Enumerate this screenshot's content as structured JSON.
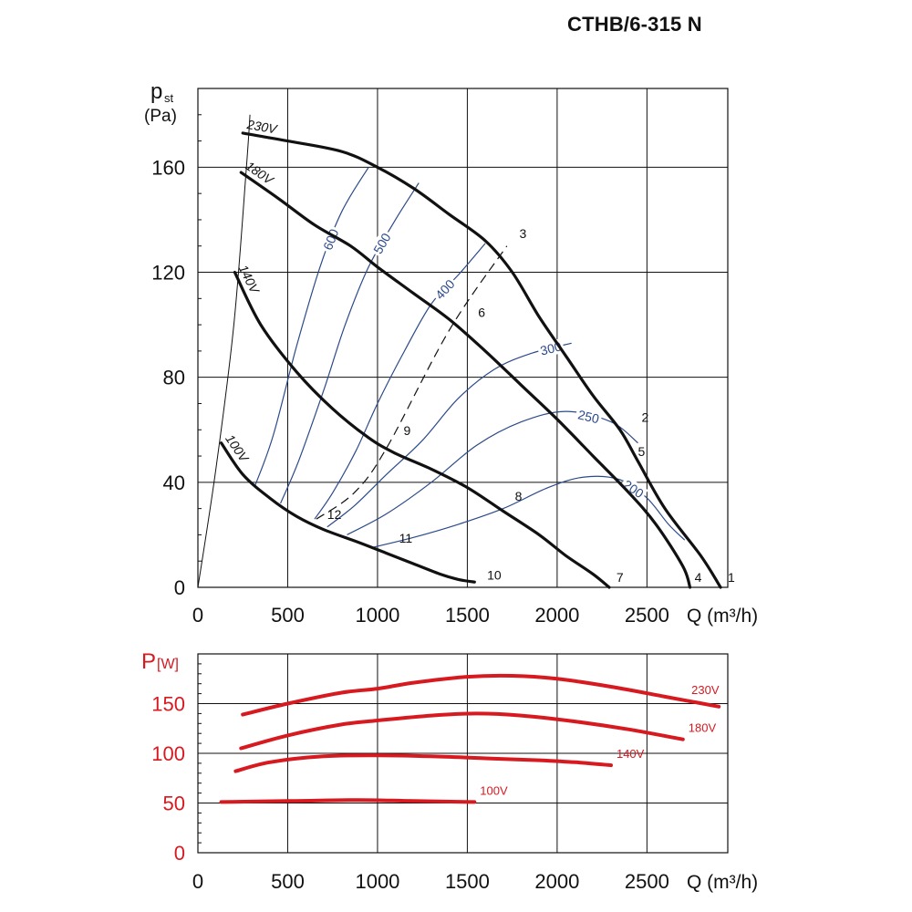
{
  "title": "CTHB/6-315 N",
  "colors": {
    "axis": "#111111",
    "pressure": "#111111",
    "power": "#d71920",
    "speed": "#2b4a8a"
  },
  "chart_data": [
    {
      "type": "line",
      "name": "pressure",
      "xlabel": "Q (m³/h)",
      "ylabel_main": "p",
      "ylabel_sub": "st",
      "ylabel_unit": "(Pa)",
      "xlim": [
        0,
        2950
      ],
      "ylim": [
        0,
        190
      ],
      "xticks": [
        0,
        500,
        1000,
        1500,
        2000,
        2500
      ],
      "yticks": [
        0,
        40,
        80,
        120,
        160
      ],
      "grid": true,
      "series": [
        {
          "name": "230V",
          "points": [
            [
              250,
              173
            ],
            [
              500,
              170
            ],
            [
              800,
              166
            ],
            [
              1000,
              160
            ],
            [
              1200,
              152
            ],
            [
              1400,
              142
            ],
            [
              1600,
              132
            ],
            [
              1750,
              120
            ],
            [
              1900,
              103
            ],
            [
              2050,
              88
            ],
            [
              2200,
              73
            ],
            [
              2350,
              60
            ],
            [
              2450,
              48
            ],
            [
              2600,
              30
            ],
            [
              2800,
              12
            ],
            [
              2910,
              0
            ]
          ]
        },
        {
          "name": "180V",
          "points": [
            [
              240,
              158
            ],
            [
              450,
              148
            ],
            [
              650,
              138
            ],
            [
              850,
              130
            ],
            [
              1000,
              122
            ],
            [
              1200,
              112
            ],
            [
              1400,
              102
            ],
            [
              1600,
              90
            ],
            [
              1800,
              77
            ],
            [
              2000,
              64
            ],
            [
              2200,
              50
            ],
            [
              2400,
              36
            ],
            [
              2550,
              24
            ],
            [
              2700,
              8
            ],
            [
              2740,
              0
            ]
          ]
        },
        {
          "name": "140V",
          "points": [
            [
              205,
              120
            ],
            [
              350,
              100
            ],
            [
              550,
              82
            ],
            [
              750,
              68
            ],
            [
              950,
              57
            ],
            [
              1100,
              51
            ],
            [
              1300,
              45
            ],
            [
              1500,
              38
            ],
            [
              1700,
              29
            ],
            [
              1900,
              20
            ],
            [
              2050,
              12
            ],
            [
              2200,
              5
            ],
            [
              2290,
              0
            ]
          ]
        },
        {
          "name": "100V",
          "points": [
            [
              130,
              55
            ],
            [
              250,
              43
            ],
            [
              400,
              34
            ],
            [
              550,
              27
            ],
            [
              700,
              22
            ],
            [
              900,
              17
            ],
            [
              1050,
              13
            ],
            [
              1200,
              9
            ],
            [
              1350,
              5
            ],
            [
              1450,
              3
            ],
            [
              1540,
              2
            ]
          ]
        }
      ],
      "speed_curves": [
        {
          "label": "600",
          "points": [
            [
              320,
              39
            ],
            [
              420,
              58
            ],
            [
              550,
              92
            ],
            [
              680,
              122
            ],
            [
              800,
              143
            ],
            [
              950,
              160
            ]
          ]
        },
        {
          "label": "500",
          "points": [
            [
              460,
              32
            ],
            [
              560,
              48
            ],
            [
              700,
              75
            ],
            [
              820,
              100
            ],
            [
              950,
              122
            ],
            [
              1100,
              140
            ],
            [
              1230,
              154
            ]
          ]
        },
        {
          "label": "400",
          "points": [
            [
              650,
              26
            ],
            [
              750,
              36
            ],
            [
              880,
              52
            ],
            [
              1000,
              70
            ],
            [
              1150,
              90
            ],
            [
              1300,
              108
            ],
            [
              1450,
              119
            ],
            [
              1600,
              131
            ]
          ]
        },
        {
          "label": "300",
          "points": [
            [
              720,
              23
            ],
            [
              870,
              31
            ],
            [
              1050,
              43
            ],
            [
              1250,
              56
            ],
            [
              1450,
              72
            ],
            [
              1650,
              83
            ],
            [
              1850,
              89
            ],
            [
              2080,
              93
            ]
          ]
        },
        {
          "label": "250",
          "points": [
            [
              830,
              20
            ],
            [
              1050,
              28
            ],
            [
              1300,
              40
            ],
            [
              1550,
              54
            ],
            [
              1800,
              63
            ],
            [
              2050,
              67
            ],
            [
              2300,
              63
            ],
            [
              2450,
              55
            ]
          ]
        },
        {
          "label": "200",
          "points": [
            [
              960,
              15
            ],
            [
              1200,
              19
            ],
            [
              1450,
              24
            ],
            [
              1700,
              30
            ],
            [
              1950,
              38
            ],
            [
              2150,
              42
            ],
            [
              2350,
              41
            ],
            [
              2500,
              34
            ],
            [
              2620,
              24
            ],
            [
              2710,
              18
            ]
          ]
        }
      ],
      "system_line": {
        "points": [
          [
            660,
            26
          ],
          [
            870,
            36
          ],
          [
            1050,
            53
          ],
          [
            1400,
            98
          ],
          [
            1720,
            130
          ]
        ]
      },
      "stall_line": {
        "points": [
          [
            0,
            0
          ],
          [
            100,
            45
          ],
          [
            200,
            100
          ],
          [
            270,
            160
          ],
          [
            290,
            180
          ]
        ]
      },
      "point_labels": [
        {
          "label": "1",
          "x": 2950,
          "y": 2
        },
        {
          "label": "2",
          "x": 2470,
          "y": 63
        },
        {
          "label": "3",
          "x": 1790,
          "y": 133
        },
        {
          "label": "4",
          "x": 2765,
          "y": 2
        },
        {
          "label": "5",
          "x": 2450,
          "y": 50
        },
        {
          "label": "6",
          "x": 1560,
          "y": 103
        },
        {
          "label": "7",
          "x": 2330,
          "y": 2
        },
        {
          "label": "8",
          "x": 1765,
          "y": 33
        },
        {
          "label": "9",
          "x": 1145,
          "y": 58
        },
        {
          "label": "10",
          "x": 1610,
          "y": 3
        },
        {
          "label": "11",
          "x": 1120,
          "y": 17
        },
        {
          "label": "12",
          "x": 720,
          "y": 26
        }
      ]
    },
    {
      "type": "line",
      "name": "power",
      "xlabel": "Q (m³/h)",
      "ylabel_main": "P",
      "ylabel_unit": "[W]",
      "xlim": [
        0,
        2950
      ],
      "ylim": [
        0,
        200
      ],
      "xticks": [
        0,
        500,
        1000,
        1500,
        2000,
        2500
      ],
      "yticks": [
        0,
        50,
        100,
        150
      ],
      "grid": true,
      "series": [
        {
          "name": "230V",
          "points": [
            [
              250,
              139
            ],
            [
              500,
              150
            ],
            [
              800,
              161
            ],
            [
              1000,
              165
            ],
            [
              1200,
              171
            ],
            [
              1500,
              177
            ],
            [
              1750,
              178
            ],
            [
              2000,
              175
            ],
            [
              2300,
              167
            ],
            [
              2600,
              157
            ],
            [
              2900,
              147
            ]
          ]
        },
        {
          "name": "180V",
          "points": [
            [
              240,
              105
            ],
            [
              500,
              118
            ],
            [
              800,
              129
            ],
            [
              1000,
              133
            ],
            [
              1300,
              138
            ],
            [
              1550,
              140
            ],
            [
              1800,
              138
            ],
            [
              2100,
              132
            ],
            [
              2400,
              124
            ],
            [
              2700,
              114
            ]
          ]
        },
        {
          "name": "140V",
          "points": [
            [
              210,
              82
            ],
            [
              400,
              91
            ],
            [
              700,
              97
            ],
            [
              1000,
              98
            ],
            [
              1300,
              97
            ],
            [
              1600,
              95
            ],
            [
              1900,
              93
            ],
            [
              2100,
              91
            ],
            [
              2300,
              88
            ]
          ]
        },
        {
          "name": "100V",
          "points": [
            [
              130,
              51
            ],
            [
              500,
              52
            ],
            [
              900,
              53
            ],
            [
              1200,
              52
            ],
            [
              1540,
              51
            ]
          ]
        }
      ]
    }
  ]
}
